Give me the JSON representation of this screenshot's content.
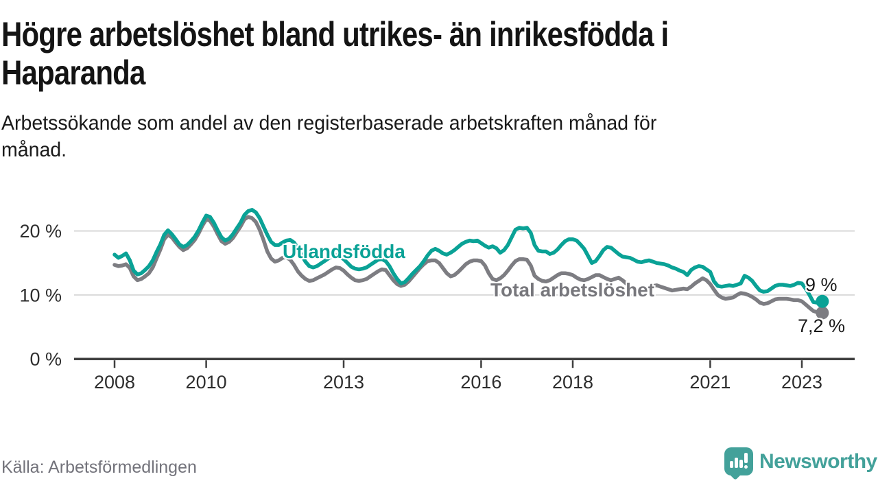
{
  "header": {
    "title": "Högre arbetslöshet bland utrikes- än inrikesfödda i Haparanda",
    "title_lines": [
      "Högre arbetslöshet bland utrikes- än inrikesfödda i",
      "Haparanda"
    ],
    "subtitle": "Arbetssökande som andel av den registerbaserade arbetskraften månad för månad.",
    "subtitle_lines": [
      "Arbetssökande som andel av den registerbaserade arbetskraften månad för",
      "månad."
    ]
  },
  "footer": {
    "source": "Källa: Arbetsförmedlingen",
    "logo_text": "Newsworthy",
    "logo_color": "#43a19a"
  },
  "chart_data": {
    "type": "line",
    "title": "Högre arbetslöshet bland utrikes- än inrikesfödda i Haparanda",
    "x_unit": "month",
    "x_start": "2008-01",
    "x_end": "2023-06",
    "ylabel": "%",
    "ylim": [
      0,
      24
    ],
    "grid": "horizontal",
    "legend": "inline-labels",
    "grid_color": "#d9d9d9",
    "axis_color": "#3f3f3f",
    "tick_label_color": "#2e2e2e",
    "yticks": [
      {
        "value": 20,
        "label": "20 %"
      },
      {
        "value": 10,
        "label": "10 %"
      },
      {
        "value": 0,
        "label": "0 %"
      }
    ],
    "xticks": [
      {
        "year": 2008,
        "label": "2008"
      },
      {
        "year": 2010,
        "label": "2010"
      },
      {
        "year": 2013,
        "label": "2013"
      },
      {
        "year": 2016,
        "label": "2016"
      },
      {
        "year": 2018,
        "label": "2018"
      },
      {
        "year": 2021,
        "label": "2021"
      },
      {
        "year": 2023,
        "label": "2023"
      }
    ],
    "series": [
      {
        "name": "Utlandsfödda",
        "color": "#0aa296",
        "end_label": "9 %",
        "end_value": 9.0,
        "values": [
          16.3,
          15.8,
          16.1,
          16.5,
          15.4,
          13.8,
          13.2,
          13.4,
          13.9,
          14.5,
          15.4,
          16.7,
          17.9,
          19.4,
          20.1,
          19.5,
          18.7,
          17.9,
          17.5,
          17.8,
          18.4,
          19.1,
          20.1,
          21.3,
          22.4,
          22.2,
          21.3,
          20.1,
          19.0,
          18.5,
          18.8,
          19.5,
          20.4,
          21.3,
          22.5,
          23.1,
          23.3,
          22.9,
          22.0,
          20.7,
          19.4,
          18.3,
          17.8,
          17.8,
          18.2,
          18.5,
          18.6,
          18.2,
          17.4,
          16.2,
          15.2,
          14.5,
          14.3,
          14.5,
          14.9,
          15.3,
          15.7,
          16.0,
          16.2,
          16.0,
          15.6,
          15.0,
          14.4,
          14.1,
          14.0,
          14.1,
          14.3,
          14.7,
          15.1,
          15.5,
          15.6,
          15.3,
          14.5,
          13.4,
          12.5,
          11.8,
          12.0,
          12.6,
          13.3,
          13.9,
          14.5,
          15.3,
          16.2,
          16.9,
          17.2,
          16.9,
          16.5,
          16.3,
          16.6,
          17.0,
          17.5,
          18.0,
          18.3,
          18.5,
          18.4,
          18.5,
          18.1,
          17.7,
          17.4,
          17.6,
          17.3,
          16.6,
          17.0,
          17.8,
          19.0,
          20.2,
          20.5,
          20.4,
          20.5,
          19.7,
          17.8,
          16.9,
          16.8,
          16.8,
          16.4,
          16.6,
          17.1,
          17.8,
          18.4,
          18.7,
          18.7,
          18.5,
          17.9,
          17.2,
          16.1,
          15.0,
          15.3,
          16.1,
          17.0,
          17.5,
          17.4,
          16.9,
          16.4,
          16.0,
          15.9,
          15.8,
          15.5,
          15.2,
          15.1,
          15.3,
          15.4,
          15.2,
          15.0,
          14.9,
          14.8,
          14.6,
          14.3,
          14.1,
          13.8,
          13.6,
          13.1,
          13.9,
          14.3,
          14.5,
          14.4,
          14.0,
          13.6,
          12.1,
          11.4,
          11.3,
          11.4,
          11.5,
          11.4,
          11.6,
          11.8,
          13.0,
          12.7,
          12.2,
          11.4,
          10.7,
          10.5,
          10.6,
          11.0,
          11.4,
          11.6,
          11.6,
          11.5,
          11.4,
          11.6,
          11.9,
          11.8,
          11.0,
          10.0,
          8.9,
          8.8,
          9.0
        ]
      },
      {
        "name": "Total arbetslöshet",
        "color": "#7d7d82",
        "label_color": "#77777c",
        "end_label": "7,2 %",
        "end_value": 7.2,
        "values": [
          14.7,
          14.5,
          14.6,
          14.8,
          14.2,
          12.9,
          12.3,
          12.5,
          12.9,
          13.4,
          14.3,
          15.7,
          17.1,
          18.7,
          19.4,
          19.0,
          18.2,
          17.5,
          17.0,
          17.3,
          17.9,
          18.6,
          19.6,
          20.8,
          21.8,
          21.6,
          20.7,
          19.5,
          18.4,
          18.0,
          18.3,
          18.9,
          19.8,
          20.7,
          21.8,
          22.2,
          22.0,
          21.4,
          20.2,
          18.6,
          16.8,
          15.7,
          15.2,
          15.4,
          15.8,
          15.9,
          15.5,
          14.7,
          13.7,
          13.0,
          12.5,
          12.2,
          12.3,
          12.6,
          12.9,
          13.2,
          13.6,
          14.0,
          14.3,
          14.2,
          13.8,
          13.2,
          12.7,
          12.3,
          12.2,
          12.3,
          12.5,
          12.9,
          13.3,
          13.7,
          14.0,
          13.9,
          13.1,
          12.3,
          11.7,
          11.4,
          11.6,
          12.1,
          12.8,
          13.5,
          14.2,
          14.8,
          15.3,
          15.4,
          15.4,
          15.0,
          14.2,
          13.4,
          12.9,
          13.1,
          13.6,
          14.2,
          14.8,
          15.2,
          15.4,
          15.4,
          15.3,
          14.6,
          13.4,
          12.5,
          12.3,
          12.6,
          13.1,
          13.8,
          14.6,
          15.3,
          15.6,
          15.6,
          15.5,
          14.6,
          13.0,
          12.5,
          12.2,
          12.1,
          12.3,
          12.7,
          13.1,
          13.4,
          13.4,
          13.3,
          13.1,
          12.7,
          12.4,
          12.3,
          12.5,
          12.8,
          13.1,
          13.1,
          12.8,
          12.5,
          12.3,
          12.5,
          12.7,
          12.3,
          11.8,
          11.3,
          11.0,
          10.8,
          10.8,
          11.0,
          11.2,
          11.4,
          11.5,
          11.3,
          11.1,
          10.9,
          10.7,
          10.8,
          10.9,
          11.0,
          10.9,
          11.3,
          11.8,
          12.2,
          12.6,
          12.3,
          11.7,
          10.8,
          10.0,
          9.6,
          9.4,
          9.5,
          9.6,
          10.0,
          10.3,
          10.2,
          10.0,
          9.7,
          9.3,
          8.8,
          8.6,
          8.7,
          9.0,
          9.3,
          9.4,
          9.4,
          9.4,
          9.3,
          9.2,
          9.2,
          9.0,
          8.5,
          8.0,
          7.5,
          7.3,
          7.2
        ]
      }
    ]
  }
}
